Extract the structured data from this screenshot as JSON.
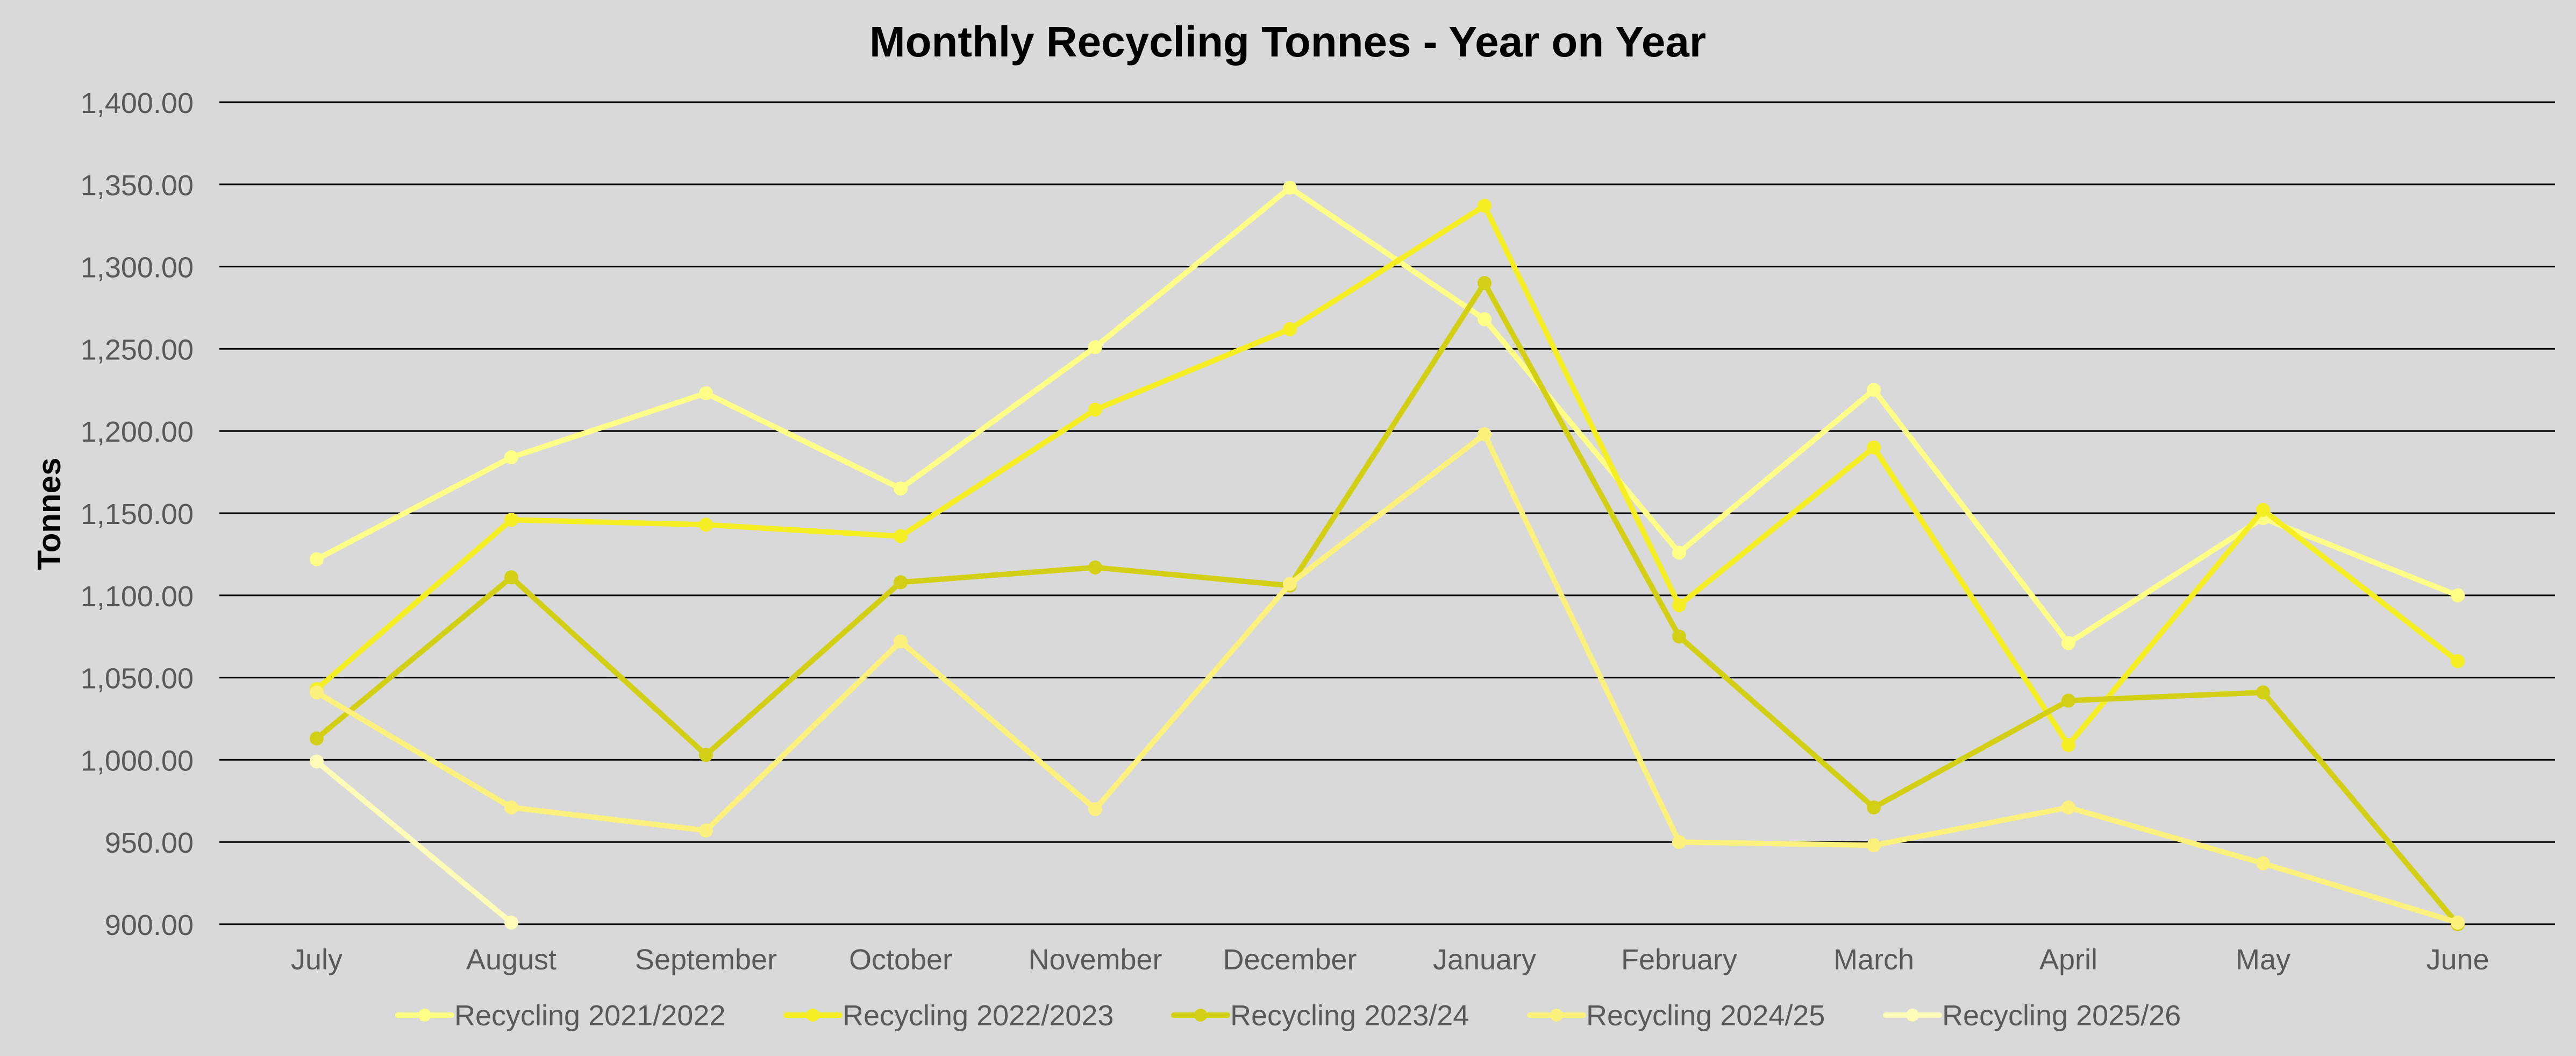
{
  "chart_data": {
    "type": "line",
    "title": "Monthly Recycling Tonnes - Year on Year",
    "xlabel": "",
    "ylabel": "Tonnes",
    "ylim": [
      900,
      1400
    ],
    "ytick_step": 50,
    "ytick_labels": [
      "900.00",
      "950.00",
      "1,000.00",
      "1,050.00",
      "1,100.00",
      "1,150.00",
      "1,200.00",
      "1,250.00",
      "1,300.00",
      "1,350.00",
      "1,400.00"
    ],
    "grid": true,
    "legend_position": "bottom",
    "categories": [
      "July",
      "August",
      "September",
      "October",
      "November",
      "December",
      "January",
      "February",
      "March",
      "April",
      "May",
      "June"
    ],
    "series": [
      {
        "name": "Recycling 2021/2022",
        "color": "#ffff88",
        "values": [
          1122,
          1184,
          1223,
          1165,
          1251,
          1348,
          1268,
          1126,
          1225,
          1071,
          1147,
          1100
        ]
      },
      {
        "name": "Recycling 2022/2023",
        "color": "#f5ee22",
        "values": [
          1043,
          1146,
          1143,
          1136,
          1213,
          1262,
          1337,
          1094,
          1190,
          1009,
          1152,
          1060
        ]
      },
      {
        "name": "Recycling 2023/24",
        "color": "#d3cf14",
        "values": [
          1013,
          1111,
          1003,
          1108,
          1117,
          1106,
          1290,
          1075,
          971,
          1036,
          1041,
          900
        ]
      },
      {
        "name": "Recycling 2024/25",
        "color": "#fbf17c",
        "values": [
          1041,
          971,
          957,
          1072,
          970,
          1107,
          1198,
          950,
          948,
          971,
          937,
          901
        ]
      },
      {
        "name": "Recycling 2025/26",
        "color": "#fffbb8",
        "values": [
          999,
          901,
          null,
          null,
          null,
          null,
          null,
          null,
          null,
          null,
          null,
          null
        ]
      }
    ]
  }
}
